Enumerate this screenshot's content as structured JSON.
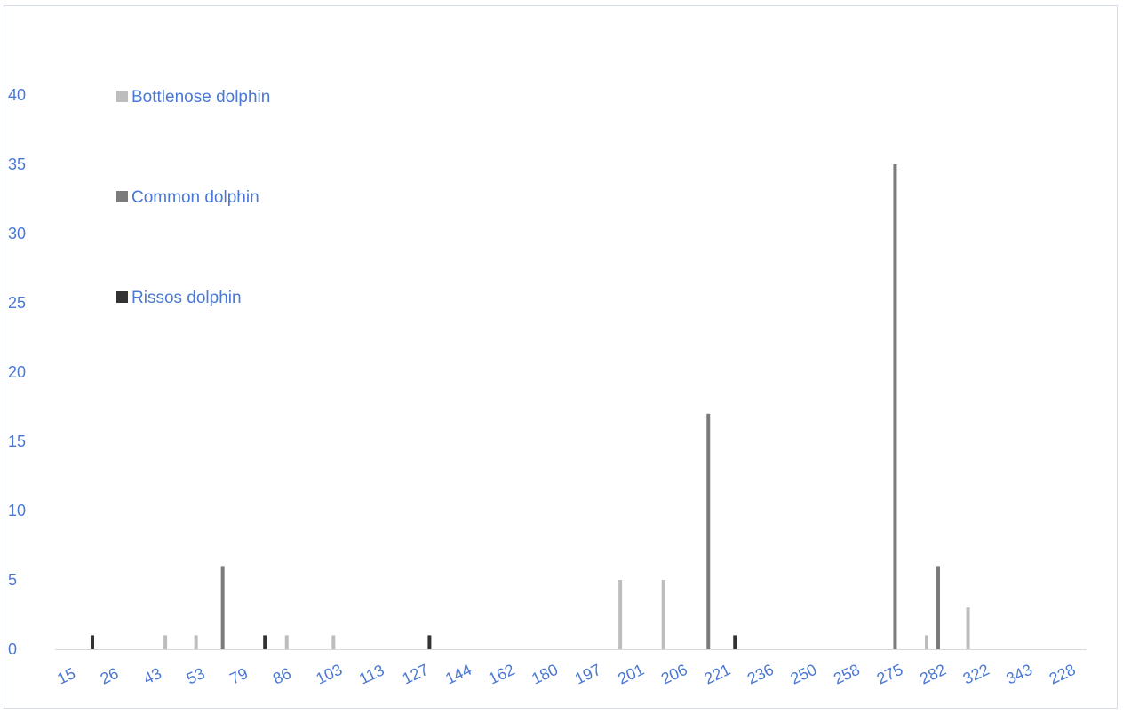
{
  "chart_data": {
    "type": "bar",
    "title": "",
    "xlabel": "",
    "ylabel": "",
    "ylim": [
      0,
      40
    ],
    "yticks": [
      0,
      5,
      10,
      15,
      20,
      25,
      30,
      35,
      40
    ],
    "x_ticks": [
      "15",
      "26",
      "43",
      "53",
      "79",
      "86",
      "103",
      "113",
      "127",
      "144",
      "162",
      "180",
      "197",
      "201",
      "206",
      "221",
      "236",
      "250",
      "258",
      "275",
      "282",
      "322",
      "343",
      "228"
    ],
    "legend_position": "top-left",
    "grid": false,
    "series": [
      {
        "name": "Bottlenose dolphin",
        "color": "#bdbdbd",
        "points": [
          {
            "x": "113",
            "y": 1
          },
          {
            "x": "113",
            "y": 1
          },
          {
            "x": "127",
            "y": 1
          },
          {
            "x": "162",
            "y": 1
          },
          {
            "x": "206",
            "y": 5
          },
          {
            "x": "258",
            "y": 5
          },
          {
            "x": "228",
            "y": 1
          },
          {
            "x": "228",
            "y": 3
          }
        ]
      },
      {
        "name": "Common dolphin",
        "color": "#7b7b7b",
        "points": [
          {
            "x": "53",
            "y": 6
          },
          {
            "x": "221",
            "y": 17
          },
          {
            "x": "282",
            "y": 35
          },
          {
            "x": "322",
            "y": 6
          }
        ]
      },
      {
        "name": "Rissos dolphin",
        "color": "#333333",
        "points": [
          {
            "x": "26",
            "y": 1
          },
          {
            "x": "86",
            "y": 1
          },
          {
            "x": "144",
            "y": 1
          },
          {
            "x": "221",
            "y": 1
          }
        ]
      }
    ]
  }
}
